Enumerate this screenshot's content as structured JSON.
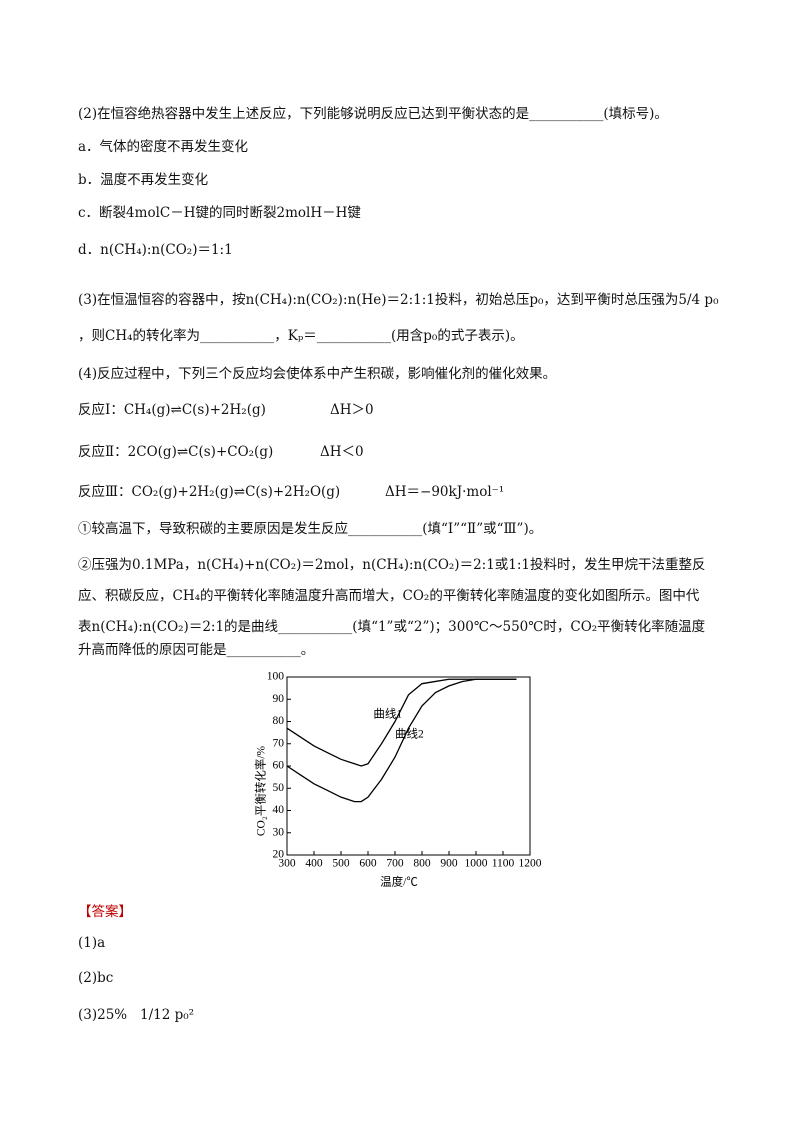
{
  "question2": {
    "stem": "(2)在恒容绝热容器中发生上述反应，下列能够说明反应已达到平衡状态的是___________(填标号)。",
    "options": [
      "a．气体的密度不再发生变化",
      "b．温度不再发生变化",
      "c．断裂4molC－H键的同时断裂2molH－H键",
      "d．n(CH₄):n(CO₂)＝1:1"
    ]
  },
  "question3": {
    "lines": [
      "(3)在恒温恒容的容器中，按n(CH₄):n(CO₂):n(He)＝2:1:1投料，初始总压p₀，达到平衡时总压强为5/4 p₀",
      "，则CH₄的转化率为___________，Kₚ＝___________(用含p₀的式子表示)。"
    ]
  },
  "question4": {
    "stem": "(4)反应过程中，下列三个反应均会使体系中产生积碳，影响催化剂的催化效果。",
    "reactions": [
      {
        "equation": "反应Ⅰ：CH₄(g)⇌C(s)+2H₂(g)",
        "enthalpy": "ΔH＞0"
      },
      {
        "equation": "反应Ⅱ：2CO(g)⇌C(s)+CO₂(g)",
        "enthalpy": "ΔH＜0"
      },
      {
        "equation": "反应Ⅲ：CO₂(g)+2H₂(g)⇌C(s)+2H₂O(g)",
        "enthalpy": "ΔH＝−90kJ·mol⁻¹"
      }
    ],
    "part1": "①较高温下，导致积碳的主要原因是发生反应___________(填“Ⅰ”“Ⅱ”或“Ⅲ”)。",
    "part2": [
      "②压强为0.1MPa，n(CH₄)+n(CO₂)＝2mol，n(CH₄):n(CO₂)＝2:1或1:1投料时，发生甲烷干法重整反",
      "应、积碳反应，CH₄的平衡转化率随温度升高而增大，CO₂的平衡转化率随温度的变化如图所示。图中代",
      "表n(CH₄):n(CO₂)＝2:1的是曲线___________(填“1”或“2”)；300℃～550℃时，CO₂平衡转化率随温度",
      "升高而降低的原因可能是___________。"
    ]
  },
  "chart_data": {
    "type": "line",
    "x_label": "温度/℃",
    "y_label": "CO₂平衡转化率/%",
    "x": [
      300,
      350,
      400,
      450,
      500,
      550,
      575,
      600,
      650,
      700,
      750,
      800,
      850,
      900,
      950,
      1000,
      1050,
      1100,
      1150
    ],
    "series": [
      {
        "name": "曲线1",
        "color": "#000000",
        "values": [
          77,
          73,
          69,
          66,
          63,
          61,
          60,
          61,
          70,
          80,
          92,
          97,
          98,
          99,
          99,
          99,
          99,
          99,
          99
        ]
      },
      {
        "name": "曲线2",
        "color": "#000000",
        "values": [
          60,
          56,
          52,
          49,
          46,
          44,
          44,
          46,
          54,
          64,
          77,
          87,
          93,
          96,
          98,
          99,
          99,
          99,
          99
        ]
      }
    ],
    "xlim": [
      300,
      1200
    ],
    "xticks": [
      300,
      400,
      500,
      600,
      700,
      800,
      900,
      1000,
      1100,
      1200
    ],
    "ylim": [
      20,
      100
    ],
    "yticks": [
      20,
      30,
      40,
      50,
      60,
      70,
      80,
      90,
      100
    ]
  },
  "answer": {
    "heading": "【答案】",
    "items": [
      "(1)a",
      "(2)bc",
      "(3)25%"
    ],
    "kp": "1/12 p₀²"
  }
}
